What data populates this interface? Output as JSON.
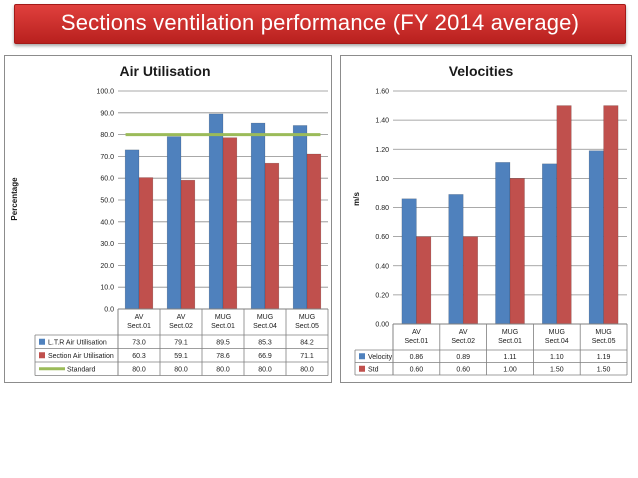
{
  "page_title": "Sections ventilation performance (FY 2014 average)",
  "chart_data": [
    {
      "type": "bar",
      "title": "Air Utilisation",
      "ylabel": "Percentage",
      "xlabel": "",
      "ylim": [
        0,
        100
      ],
      "yticks": [
        "0.0",
        "10.0",
        "20.0",
        "30.0",
        "40.0",
        "50.0",
        "60.0",
        "70.0",
        "80.0",
        "90.0",
        "100.0"
      ],
      "grid": true,
      "legend": "data-table",
      "categories": [
        [
          "AV",
          "Sect.01"
        ],
        [
          "AV",
          "Sect.02"
        ],
        [
          "MUG",
          "Sect.01"
        ],
        [
          "MUG",
          "Sect.04"
        ],
        [
          "MUG",
          "Sect.05"
        ]
      ],
      "series": [
        {
          "name": "L.T.R Air Utilisation",
          "kind": "bar",
          "color": "#4f81bd",
          "values": [
            73.0,
            79.1,
            89.5,
            85.3,
            84.2
          ],
          "labels": [
            "73.0",
            "79.1",
            "89.5",
            "85.3",
            "84.2"
          ]
        },
        {
          "name": "Section Air Utilisation",
          "kind": "bar",
          "color": "#c0504d",
          "values": [
            60.3,
            59.1,
            78.6,
            66.9,
            71.1
          ],
          "labels": [
            "60.3",
            "59.1",
            "78.6",
            "66.9",
            "71.1"
          ]
        },
        {
          "name": "Standard",
          "kind": "line",
          "color": "#9bbb59",
          "values": [
            80.0,
            80.0,
            80.0,
            80.0,
            80.0
          ],
          "labels": [
            "80.0",
            "80.0",
            "80.0",
            "80.0",
            "80.0"
          ]
        }
      ]
    },
    {
      "type": "bar",
      "title": "Velocities",
      "ylabel": "m/s",
      "xlabel": "",
      "ylim": [
        0,
        1.6
      ],
      "yticks": [
        "0.00",
        "0.20",
        "0.40",
        "0.60",
        "0.80",
        "1.00",
        "1.20",
        "1.40",
        "1.60"
      ],
      "grid": true,
      "legend": "data-table",
      "categories": [
        [
          "AV",
          "Sect.01"
        ],
        [
          "AV",
          "Sect.02"
        ],
        [
          "MUG",
          "Sect.01"
        ],
        [
          "MUG",
          "Sect.04"
        ],
        [
          "MUG",
          "Sect.05"
        ]
      ],
      "series": [
        {
          "name": "Velocity",
          "kind": "bar",
          "color": "#4f81bd",
          "values": [
            0.86,
            0.89,
            1.11,
            1.1,
            1.19
          ],
          "labels": [
            "0.86",
            "0.89",
            "1.11",
            "1.10",
            "1.19"
          ]
        },
        {
          "name": "Std",
          "kind": "bar",
          "color": "#c0504d",
          "values": [
            0.6,
            0.6,
            1.0,
            1.5,
            1.5
          ],
          "labels": [
            "0.60",
            "0.60",
            "1.00",
            "1.50",
            "1.50"
          ]
        }
      ]
    }
  ]
}
